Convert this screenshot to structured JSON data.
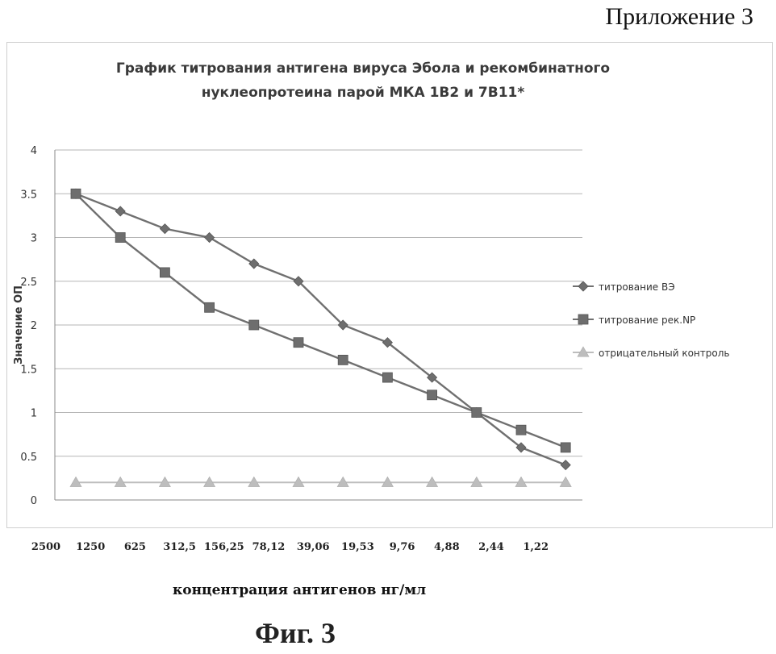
{
  "appendix_label": "Приложение 3",
  "figure_caption": "Фиг. 3",
  "chart_data": {
    "type": "line",
    "title": "График титрования антигена вируса Эбола и рекомбинатного\nнуклеопротеина парой МКА 1В2 и 7В11*",
    "xlabel": "концентрация антигенов нг/мл",
    "ylabel": "Значение ОП",
    "categories": [
      "2500",
      "1250",
      "625",
      "312,5",
      "156,25",
      "78,12",
      "39,06",
      "19,53",
      "9,76",
      "4,88",
      "2,44",
      "1,22"
    ],
    "ylim": [
      0,
      4
    ],
    "yticks": [
      "0",
      "0.5",
      "1",
      "1.5",
      "2",
      "2.5",
      "3",
      "3.5",
      "4"
    ],
    "grid": true,
    "legend_position": "right",
    "series": [
      {
        "name": "титрование ВЭ",
        "marker": "diamond",
        "color": "#6e6e6e",
        "values": [
          3.5,
          3.3,
          3.1,
          3.0,
          2.7,
          2.5,
          2.0,
          1.8,
          1.4,
          1.0,
          0.6,
          0.4
        ]
      },
      {
        "name": "титрование рек.NP",
        "marker": "square",
        "color": "#6e6e6e",
        "values": [
          3.5,
          3.0,
          2.6,
          2.2,
          2.0,
          1.8,
          1.6,
          1.4,
          1.2,
          1.0,
          0.8,
          0.6
        ]
      },
      {
        "name": "отрицательный контроль",
        "marker": "triangle",
        "color": "#bdbdbd",
        "values": [
          0.2,
          0.2,
          0.2,
          0.2,
          0.2,
          0.2,
          0.2,
          0.2,
          0.2,
          0.2,
          0.2,
          0.2
        ]
      }
    ]
  }
}
